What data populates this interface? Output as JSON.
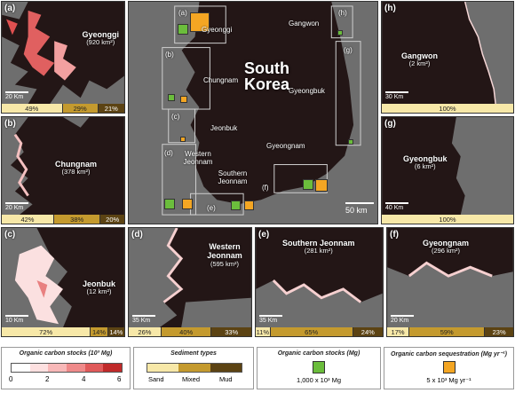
{
  "panels": {
    "a": {
      "label": "(a)",
      "name": "Gyeonggi",
      "area": "(920 km²)",
      "scale": "20 Km",
      "sediment": [
        "49%",
        "29%",
        "21%"
      ]
    },
    "b": {
      "label": "(b)",
      "name": "Chungnam",
      "area": "(378 km²)",
      "scale": "20 Km",
      "sediment": [
        "42%",
        "38%",
        "20%"
      ]
    },
    "c": {
      "label": "(c)",
      "name": "Jeonbuk",
      "area": "(12 km²)",
      "scale": "10 Km",
      "sediment": [
        "72%",
        "14%",
        "14%"
      ]
    },
    "d": {
      "label": "(d)",
      "name": "Western Jeonnam",
      "area": "(595 km²)",
      "scale": "35 Km",
      "sediment": [
        "26%",
        "40%",
        "33%"
      ]
    },
    "e": {
      "label": "(e)",
      "name": "Southern Jeonnam",
      "area": "(281 km²)",
      "scale": "35 Km",
      "sediment": [
        "11%",
        "65%",
        "24%"
      ]
    },
    "f": {
      "label": "(f)",
      "name": "Gyeongnam",
      "area": "(296 km²)",
      "scale": "20 Km",
      "sediment": [
        "17%",
        "59%",
        "23%"
      ]
    },
    "g": {
      "label": "(g)",
      "name": "Gyeongbuk",
      "area": "(6 km²)",
      "scale": "40 Km",
      "sediment": [
        "100%"
      ]
    },
    "h": {
      "label": "(h)",
      "name": "Gangwon",
      "area": "(2 km²)",
      "scale": "30 Km",
      "sediment": [
        "100%"
      ]
    }
  },
  "center_map": {
    "title_line1": "South",
    "title_line2": "Korea",
    "scale": "50 km",
    "regions": [
      "Gyeonggi",
      "Gangwon",
      "Chungnam",
      "Gyeongbuk",
      "Jeonbuk",
      "Gyeongnam",
      "Western Jeonnam",
      "Southern Jeonnam"
    ],
    "box_labels": [
      "(a)",
      "(b)",
      "(c)",
      "(d)",
      "(e)",
      "(f)",
      "(g)",
      "(h)"
    ]
  },
  "legend": {
    "stocks_title": "Organic carbon stocks (10³ Mg)",
    "stocks_ticks": [
      "0",
      "2",
      "4",
      "6"
    ],
    "sediment_title": "Sediment types",
    "sediment_labels": [
      "Sand",
      "Mixed",
      "Mud"
    ],
    "stocks_mg_title": "Organic carbon stocks (Mg)",
    "stocks_mg_label": "1,000 x 10³ Mg",
    "seq_title": "Organic carbon sequestration (Mg yr⁻¹)",
    "seq_label": "5 x 10³ Mg yr⁻¹"
  },
  "colors": {
    "land": "#231616",
    "sea": "#6e6e6e",
    "green": "#6bbd3c",
    "orange": "#f4a623",
    "sand": "#f7e8a8",
    "mixed": "#c49a2e",
    "mud": "#5c4313"
  }
}
